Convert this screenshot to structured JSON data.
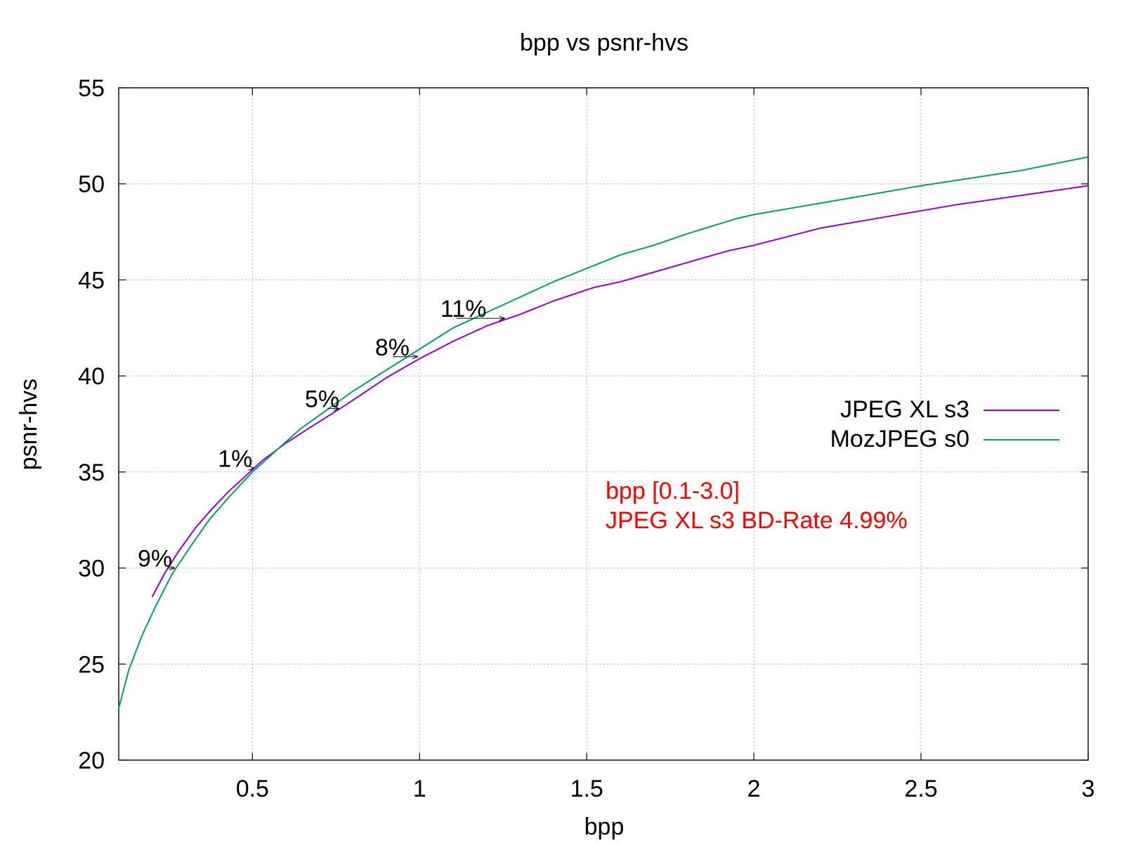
{
  "chart_data": {
    "type": "line",
    "title": "bpp vs psnr-hvs",
    "xlabel": "bpp",
    "ylabel": "psnr-hvs",
    "xlim": [
      0.1,
      3.0
    ],
    "ylim": [
      20,
      55
    ],
    "xticks": [
      0.5,
      1,
      1.5,
      2,
      2.5,
      3
    ],
    "xtick_labels": [
      "0.5",
      "1",
      "1.5",
      "2",
      "2.5",
      "3"
    ],
    "yticks": [
      20,
      25,
      30,
      35,
      40,
      45,
      50,
      55
    ],
    "ytick_labels": [
      "20",
      "25",
      "30",
      "35",
      "40",
      "45",
      "50",
      "55"
    ],
    "grid": true,
    "legend_position": "right-middle",
    "series": [
      {
        "name": "JPEG XL s3",
        "color": "#9400d3",
        "points": [
          [
            0.2,
            28.5
          ],
          [
            0.24,
            29.8
          ],
          [
            0.28,
            30.9
          ],
          [
            0.33,
            32.1
          ],
          [
            0.38,
            33.1
          ],
          [
            0.43,
            34.0
          ],
          [
            0.48,
            34.8
          ],
          [
            0.53,
            35.6
          ],
          [
            0.6,
            36.5
          ],
          [
            0.68,
            37.4
          ],
          [
            0.78,
            38.5
          ],
          [
            0.9,
            39.9
          ],
          [
            1.0,
            40.9
          ],
          [
            1.1,
            41.8
          ],
          [
            1.2,
            42.6
          ],
          [
            1.3,
            43.2
          ],
          [
            1.4,
            43.9
          ],
          [
            1.52,
            44.6
          ],
          [
            1.6,
            44.9
          ],
          [
            1.7,
            45.4
          ],
          [
            1.8,
            45.9
          ],
          [
            1.92,
            46.5
          ],
          [
            2.0,
            46.8
          ],
          [
            2.2,
            47.7
          ],
          [
            2.4,
            48.3
          ],
          [
            2.6,
            48.9
          ],
          [
            2.8,
            49.4
          ],
          [
            3.0,
            49.9
          ]
        ]
      },
      {
        "name": "MozJPEG s0",
        "color": "#009e73",
        "points": [
          [
            0.1,
            22.7
          ],
          [
            0.13,
            24.7
          ],
          [
            0.17,
            26.5
          ],
          [
            0.21,
            28.0
          ],
          [
            0.26,
            29.7
          ],
          [
            0.31,
            31.0
          ],
          [
            0.37,
            32.5
          ],
          [
            0.43,
            33.7
          ],
          [
            0.5,
            35.0
          ],
          [
            0.57,
            36.1
          ],
          [
            0.64,
            37.2
          ],
          [
            0.72,
            38.2
          ],
          [
            0.8,
            39.2
          ],
          [
            0.9,
            40.3
          ],
          [
            1.0,
            41.4
          ],
          [
            1.1,
            42.5
          ],
          [
            1.2,
            43.3
          ],
          [
            1.3,
            44.1
          ],
          [
            1.4,
            44.9
          ],
          [
            1.5,
            45.6
          ],
          [
            1.6,
            46.3
          ],
          [
            1.7,
            46.8
          ],
          [
            1.8,
            47.4
          ],
          [
            1.95,
            48.2
          ],
          [
            2.0,
            48.4
          ],
          [
            2.2,
            49.0
          ],
          [
            2.5,
            49.9
          ],
          [
            2.8,
            50.7
          ],
          [
            3.0,
            51.4
          ]
        ]
      }
    ],
    "percent_markers": [
      {
        "label": "9%",
        "x": 0.26,
        "y": 30.0,
        "x_from": 0.245,
        "x_to": 0.268
      },
      {
        "label": "1%",
        "x": 0.5,
        "y": 35.2,
        "x_from": 0.5,
        "x_to": 0.505
      },
      {
        "label": "5%",
        "x": 0.76,
        "y": 38.3,
        "x_from": 0.725,
        "x_to": 0.76
      },
      {
        "label": "8%",
        "x": 0.97,
        "y": 41.0,
        "x_from": 0.92,
        "x_to": 0.995
      },
      {
        "label": "11%",
        "x": 1.2,
        "y": 43.0,
        "x_from": 1.11,
        "x_to": 1.255
      }
    ],
    "annotations": [
      "bpp [0.1-3.0]",
      "JPEG XL s3 BD-Rate 4.99%"
    ],
    "annotation_color": "#ff0000"
  }
}
